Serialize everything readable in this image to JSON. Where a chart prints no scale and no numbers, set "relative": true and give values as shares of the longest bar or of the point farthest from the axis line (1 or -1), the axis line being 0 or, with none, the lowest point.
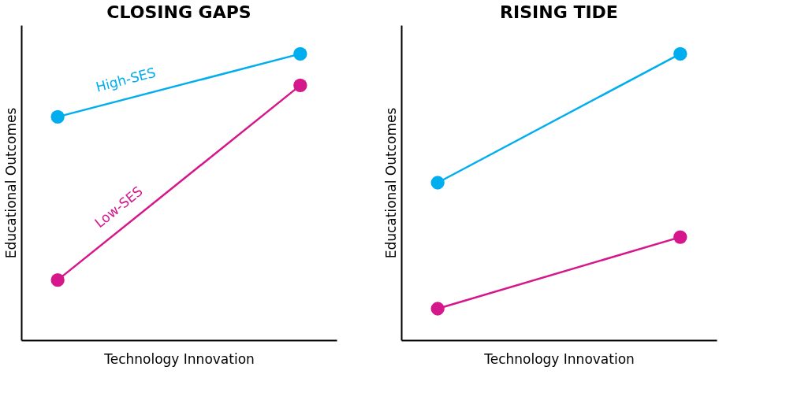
{
  "chart_data": [
    {
      "type": "line",
      "title": "CLOSING GAPS",
      "xlabel": "Technology Innovation",
      "ylabel": "Educational Outcomes",
      "relative": true,
      "marker": "circle",
      "categories": [
        null,
        null
      ],
      "series": [
        {
          "name": "High-SES",
          "color": "#00aeef",
          "values": [
            0.78,
            1
          ]
        },
        {
          "name": "Low-SES",
          "color": "#d6168b",
          "values": [
            0.21,
            0.89
          ]
        }
      ]
    },
    {
      "type": "line",
      "title": "RISING TIDE",
      "xlabel": "Technology Innovation",
      "ylabel": "Educational Outcomes",
      "relative": true,
      "marker": "circle",
      "categories": [
        null,
        null
      ],
      "series": [
        {
          "color": "#00aeef",
          "values": [
            0.55,
            1
          ]
        },
        {
          "color": "#d6168b",
          "values": [
            0.11,
            0.36
          ]
        }
      ]
    }
  ]
}
